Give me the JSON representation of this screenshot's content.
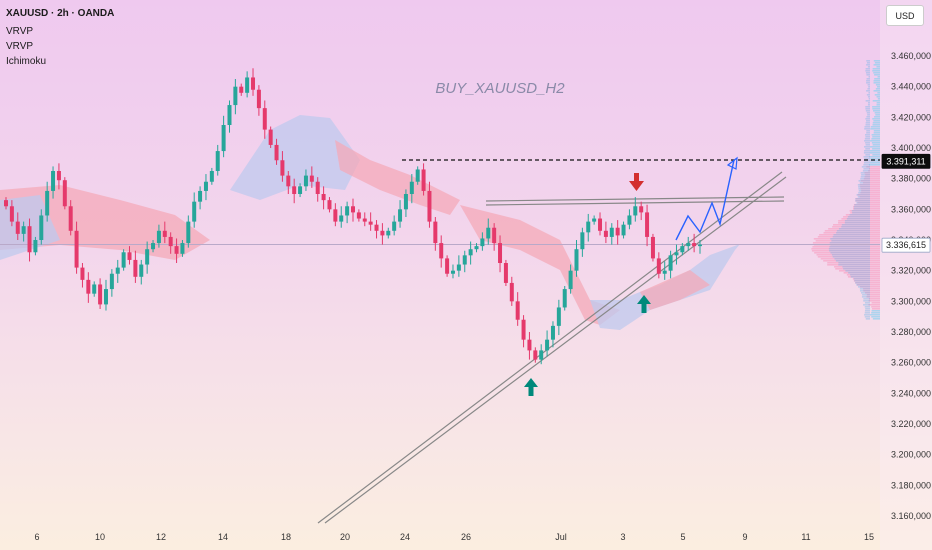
{
  "header": {
    "symbol": "XAUUSD · 2h · OANDA",
    "indicators": [
      "VRVP",
      "VRVP",
      "Ichimoku"
    ]
  },
  "currency_button": "USD",
  "chart_data": {
    "type": "candlestick",
    "title": "BUY_XAUUSD_H2",
    "ylim": [
      3150000,
      3480000
    ],
    "y_ticks": [
      3460000,
      3440000,
      3420000,
      3400000,
      3380000,
      3360000,
      3340000,
      3320000,
      3300000,
      3280000,
      3260000,
      3240000,
      3220000,
      3200000,
      3180000,
      3160000
    ],
    "y_tick_labels": [
      "3.460,000",
      "3.440,000",
      "3.420,000",
      "3.400,000",
      "3.380,000",
      "3.360,000",
      "3.340,000",
      "3.320,000",
      "3.300,000",
      "3.280,000",
      "3.260,000",
      "3.240,000",
      "3.220,000",
      "3.200,000",
      "3.180,000",
      "3.160,000"
    ],
    "x_tick_labels": [
      "6",
      "10",
      "12",
      "14",
      "18",
      "20",
      "24",
      "26",
      "Jul",
      "3",
      "5",
      "9",
      "11",
      "15"
    ],
    "price_labels": [
      {
        "text": "3.391,311",
        "value": 3391311,
        "style": "dark"
      },
      {
        "text": "3.336,615",
        "value": 3336615,
        "style": "light"
      }
    ],
    "resistance_level": 3391311,
    "current_price": 3336615,
    "close_series": [
      3362,
      3352,
      3344,
      3349,
      3332,
      3340,
      3356,
      3372,
      3385,
      3379,
      3362,
      3346,
      3322,
      3314,
      3305,
      3311,
      3298,
      3308,
      3318,
      3322,
      3332,
      3327,
      3316,
      3324,
      3334,
      3338,
      3346,
      3342,
      3336,
      3331,
      3338,
      3352,
      3365,
      3372,
      3378,
      3385,
      3398,
      3415,
      3428,
      3440,
      3436,
      3446,
      3438,
      3426,
      3412,
      3402,
      3392,
      3382,
      3375,
      3370,
      3375,
      3382,
      3378,
      3370,
      3366,
      3360,
      3352,
      3356,
      3362,
      3358,
      3354,
      3352,
      3350,
      3346,
      3343,
      3346,
      3352,
      3360,
      3370,
      3378,
      3386,
      3372,
      3352,
      3338,
      3328,
      3318,
      3320,
      3324,
      3330,
      3334,
      3336,
      3341,
      3348,
      3338,
      3325,
      3312,
      3300,
      3288,
      3275,
      3268,
      3262,
      3268,
      3275,
      3284,
      3296,
      3308,
      3320,
      3334,
      3345,
      3352,
      3354,
      3346,
      3342,
      3348,
      3343,
      3350,
      3356,
      3362,
      3358,
      3342,
      3328,
      3318,
      3320,
      3330,
      3332,
      3336,
      3338,
      3336,
      3337
    ],
    "annotations": [
      {
        "type": "arrow-down",
        "color": "#d32f2f",
        "label": "sell signal"
      },
      {
        "type": "arrow-up",
        "color": "#00897b",
        "label": "buy signal"
      },
      {
        "type": "arrow-up",
        "color": "#00897b",
        "label": "buy signal"
      },
      {
        "type": "projection",
        "color": "#2962ff"
      }
    ],
    "colors": {
      "up": "#26a69a",
      "down": "#e5396b",
      "cloud_bull": "#b9c8f0",
      "cloud_bear": "#f4a9b8",
      "volume_profile": "#5fb2e8",
      "projection": "#2962ff"
    },
    "indicators": [
      "VRVP",
      "VRVP",
      "Ichimoku"
    ]
  }
}
